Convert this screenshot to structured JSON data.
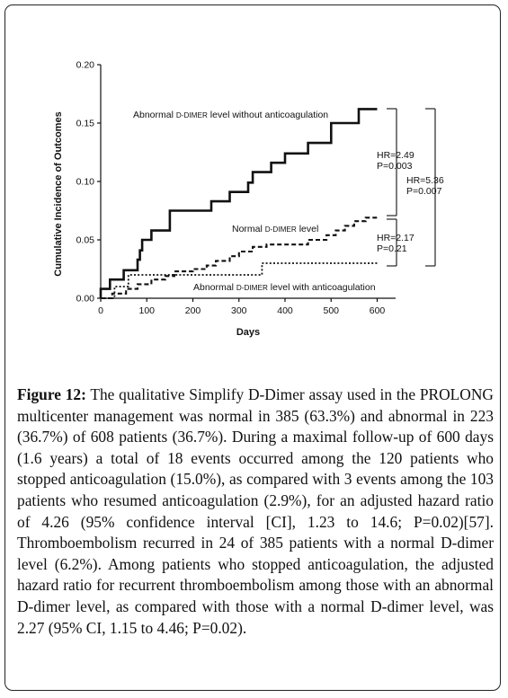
{
  "chart_data": {
    "type": "line",
    "title": "",
    "xlabel": "Days",
    "ylabel": "Cumulative Incidence of Outcomes",
    "xlim": [
      0,
      640
    ],
    "ylim": [
      0,
      0.2
    ],
    "x_ticks": [
      "0",
      "100",
      "200",
      "300",
      "400",
      "500",
      "600"
    ],
    "y_ticks": [
      "0.00",
      "0.05",
      "0.10",
      "0.15",
      "0.20"
    ],
    "grid": false,
    "series": [
      {
        "name": "Abnormal D-dimer level without anticoagulation",
        "style": "solid",
        "color": "#111111",
        "points": [
          [
            0,
            0
          ],
          [
            0,
            0.008
          ],
          [
            20,
            0.008
          ],
          [
            20,
            0.016
          ],
          [
            50,
            0.016
          ],
          [
            50,
            0.024
          ],
          [
            80,
            0.024
          ],
          [
            80,
            0.033
          ],
          [
            85,
            0.033
          ],
          [
            85,
            0.041
          ],
          [
            90,
            0.041
          ],
          [
            90,
            0.05
          ],
          [
            110,
            0.05
          ],
          [
            110,
            0.058
          ],
          [
            150,
            0.058
          ],
          [
            150,
            0.075
          ],
          [
            240,
            0.075
          ],
          [
            240,
            0.083
          ],
          [
            280,
            0.083
          ],
          [
            280,
            0.091
          ],
          [
            320,
            0.091
          ],
          [
            320,
            0.099
          ],
          [
            330,
            0.099
          ],
          [
            330,
            0.108
          ],
          [
            370,
            0.108
          ],
          [
            370,
            0.116
          ],
          [
            400,
            0.116
          ],
          [
            400,
            0.124
          ],
          [
            450,
            0.124
          ],
          [
            450,
            0.133
          ],
          [
            500,
            0.133
          ],
          [
            500,
            0.15
          ],
          [
            560,
            0.15
          ],
          [
            560,
            0.162
          ],
          [
            600,
            0.162
          ]
        ]
      },
      {
        "name": "Normal D-dimer level",
        "style": "dashed",
        "color": "#111111",
        "points": [
          [
            0,
            0
          ],
          [
            25,
            0
          ],
          [
            25,
            0.004
          ],
          [
            55,
            0.004
          ],
          [
            55,
            0.008
          ],
          [
            80,
            0.008
          ],
          [
            80,
            0.012
          ],
          [
            110,
            0.012
          ],
          [
            110,
            0.016
          ],
          [
            140,
            0.016
          ],
          [
            140,
            0.019
          ],
          [
            160,
            0.019
          ],
          [
            160,
            0.023
          ],
          [
            200,
            0.023
          ],
          [
            200,
            0.025
          ],
          [
            230,
            0.025
          ],
          [
            230,
            0.028
          ],
          [
            250,
            0.028
          ],
          [
            250,
            0.032
          ],
          [
            280,
            0.032
          ],
          [
            280,
            0.036
          ],
          [
            300,
            0.036
          ],
          [
            300,
            0.04
          ],
          [
            330,
            0.04
          ],
          [
            330,
            0.044
          ],
          [
            360,
            0.044
          ],
          [
            360,
            0.046
          ],
          [
            450,
            0.046
          ],
          [
            450,
            0.05
          ],
          [
            490,
            0.05
          ],
          [
            490,
            0.054
          ],
          [
            510,
            0.054
          ],
          [
            510,
            0.058
          ],
          [
            530,
            0.058
          ],
          [
            530,
            0.062
          ],
          [
            550,
            0.062
          ],
          [
            550,
            0.066
          ],
          [
            575,
            0.066
          ],
          [
            575,
            0.069
          ],
          [
            600,
            0.069
          ]
        ]
      },
      {
        "name": "Abnormal D-dimer level with anticoagulation",
        "style": "dotted",
        "color": "#111111",
        "points": [
          [
            0,
            0
          ],
          [
            30,
            0
          ],
          [
            30,
            0.01
          ],
          [
            60,
            0.01
          ],
          [
            60,
            0.02
          ],
          [
            350,
            0.02
          ],
          [
            350,
            0.03
          ],
          [
            600,
            0.03
          ]
        ]
      }
    ],
    "labels": {
      "without": [
        "Abnormal ",
        "D-DIMER",
        " level without anticoagulation"
      ],
      "normal": [
        "Normal ",
        "D-DIMER",
        " level"
      ],
      "with": [
        "Abnormal ",
        "D-DIMER",
        " level with anticoagulation"
      ]
    },
    "annotations": [
      {
        "lines": [
          "HR=2.49",
          "P=0.003"
        ]
      },
      {
        "lines": [
          "HR=5.36",
          "P=0.007"
        ]
      },
      {
        "lines": [
          "HR=2.17",
          "P=0.21"
        ]
      }
    ]
  },
  "caption": {
    "figure_label": "Figure 12:",
    "text": " The qualitative Simplify D-Dimer assay used in the PROLONG multicenter management was normal in 385 (63.3%) and abnormal in 223 (36.7%) of 608 patients (36.7%). During a maximal follow-up of 600 days (1.6 years) a total of 18 events occurred among the 120 patients who stopped anticoagulation (15.0%), as compared with 3 events among the 103 patients who resumed anticoagulation (2.9%), for an adjusted hazard ratio of 4.26 (95% confidence interval [CI], 1.23 to 14.6; P=0.02)[57]. Thromboembolism recurred in 24 of 385 patients with a normal D-dimer level (6.2%). Among patients who stopped anticoagulation, the adjusted hazard ratio for recurrent thromboembolism among those with an abnormal D-dimer level, as compared with those with a normal D-dimer level, was 2.27 (95% CI, 1.15 to 4.46; P=0.02)."
  }
}
